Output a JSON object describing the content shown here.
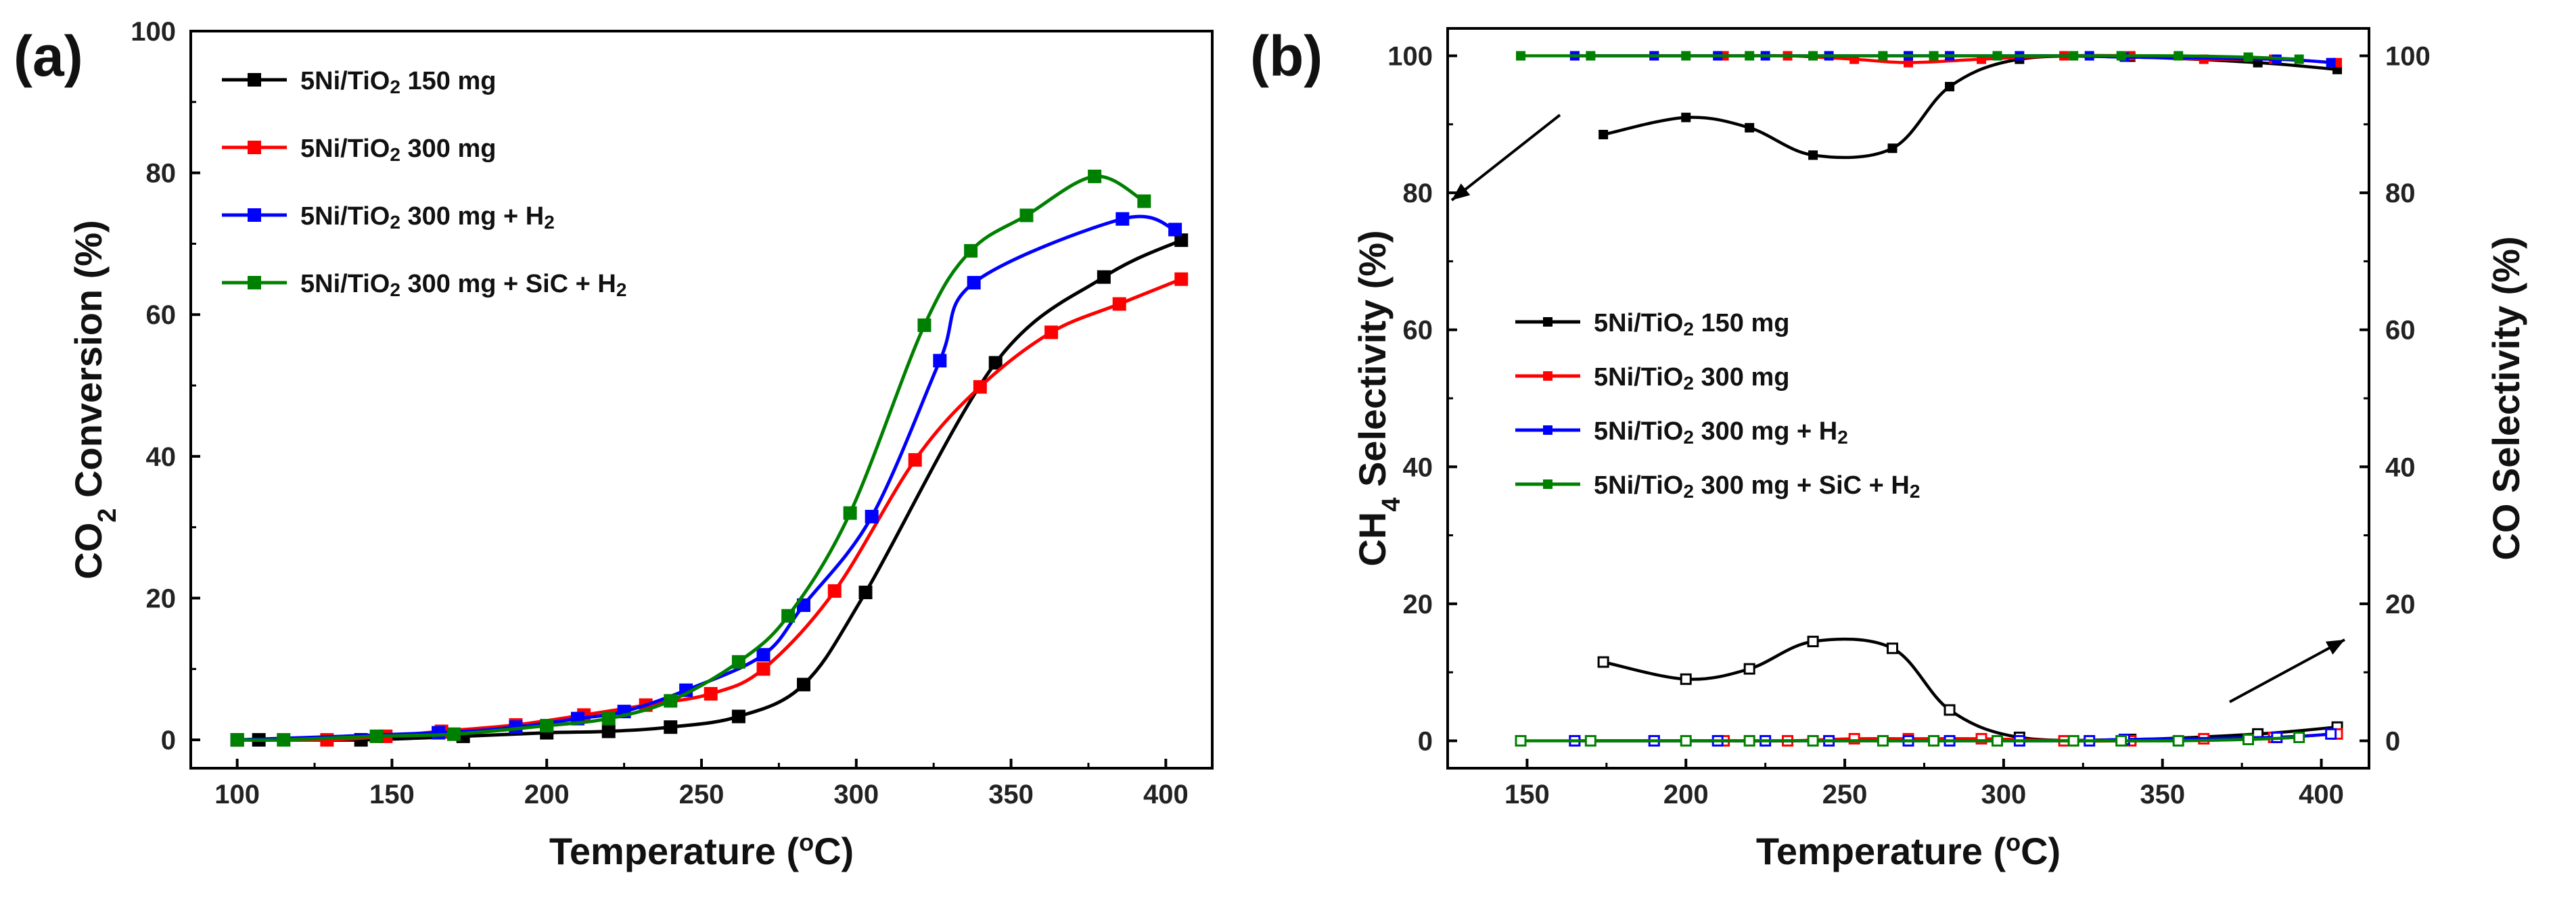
{
  "chart_data": [
    {
      "type": "line",
      "panel_label": "(a)",
      "title": "",
      "xlabel": "Temperature (°C)",
      "ylabel": "CO2 Conversion (%)",
      "xlim": [
        85,
        415
      ],
      "ylim": [
        -4,
        100
      ],
      "xticks": [
        100,
        150,
        200,
        250,
        300,
        350,
        400
      ],
      "yticks": [
        0,
        20,
        40,
        60,
        80,
        100
      ],
      "legend_position": "top-left",
      "series": [
        {
          "name": "5Ni/TiO2 150 mg",
          "label_main": "5Ni/TiO",
          "sub": "2",
          "label_tail": " 150 mg",
          "h2": false,
          "color": "#000000",
          "x": [
            100,
            107,
            140,
            173,
            200,
            220,
            240,
            262,
            283,
            303,
            345,
            380,
            405
          ],
          "y": [
            0,
            0,
            0,
            0.5,
            1,
            1.2,
            1.8,
            3.3,
            7.8,
            20.8,
            53.2,
            65.3,
            70.5
          ]
        },
        {
          "name": "5Ni/TiO2 300 mg",
          "label_main": "5Ni/TiO",
          "sub": "2",
          "label_tail": "  300 mg",
          "h2": false,
          "color": "#ff0000",
          "x": [
            100,
            129,
            148,
            166,
            190,
            212,
            232,
            253,
            270,
            293,
            319,
            340,
            363,
            385,
            405
          ],
          "y": [
            0,
            0,
            0.5,
            1.2,
            2.1,
            3.5,
            4.9,
            6.5,
            10,
            21,
            39.5,
            49.8,
            57.5,
            61.5,
            65
          ]
        },
        {
          "name": "5Ni/TiO2 300 mg + H2",
          "label_main": "5Ni/TiO",
          "sub": "2",
          "label_tail": "  300 mg + H",
          "h2": true,
          "color": "#0000ff",
          "x": [
            100,
            165,
            190,
            210,
            225,
            245,
            270,
            283,
            305,
            327,
            338,
            386,
            403
          ],
          "y": [
            0,
            1,
            1.8,
            3,
            4,
            7,
            12,
            19,
            31.5,
            53.5,
            64.5,
            73.5,
            72
          ]
        },
        {
          "name": "5Ni/TiO2 300 mg + SiC + H2",
          "label_main": "5Ni/TiO",
          "sub": "2",
          "label_tail": "  300 mg + SiC + H",
          "h2": true,
          "color": "#008000",
          "x": [
            100,
            115,
            145,
            170,
            200,
            220,
            240,
            262,
            278,
            298,
            322,
            337,
            355,
            377,
            393
          ],
          "y": [
            0,
            0,
            0.5,
            0.8,
            2,
            3,
            5.5,
            11,
            17.5,
            32,
            58.5,
            69,
            74,
            79.5,
            76
          ]
        }
      ]
    },
    {
      "type": "line",
      "panel_label": "(b)",
      "title": "",
      "xlabel": "Temperature (°C)",
      "ylabel": "CH4 Selectivity (%)",
      "y2label": "CO Selectivity (%)",
      "xlim": [
        125,
        415
      ],
      "ylim": [
        -4,
        104
      ],
      "xticks": [
        150,
        200,
        250,
        300,
        350,
        400
      ],
      "yticks": [
        0,
        20,
        40,
        60,
        80,
        100
      ],
      "legend_position": "center-left",
      "series": [
        {
          "name": "5Ni/TiO2 150 mg",
          "label_main": "5Ni/TiO",
          "sub": "2",
          "label_tail": " 150 mg",
          "h2": false,
          "color": "#000000",
          "ch4": {
            "x": [
              174,
              200,
              220,
              240,
              265,
              283,
              305,
              340,
              380,
              405
            ],
            "y": [
              88.5,
              91,
              89.5,
              85.5,
              86.5,
              95.5,
              99.5,
              99.8,
              99,
              98
            ]
          },
          "co": {
            "x": [
              174,
              200,
              220,
              240,
              265,
              283,
              305,
              340,
              380,
              405
            ],
            "y": [
              11.5,
              9,
              10.5,
              14.5,
              13.5,
              4.5,
              0.5,
              0.2,
              1,
              2
            ]
          }
        },
        {
          "name": "5Ni/TiO2 300 mg",
          "label_main": "5Ni/TiO",
          "sub": "2",
          "label_tail": " 300 mg",
          "h2": false,
          "color": "#ff0000",
          "ch4": {
            "x": [
              165,
              190,
              212,
              232,
              253,
              270,
              293,
              319,
              340,
              363,
              385,
              405
            ],
            "y": [
              100,
              100,
              100,
              100,
              99.5,
              99,
              99.5,
              100,
              100,
              99.5,
              99.5,
              99
            ]
          },
          "co": {
            "x": [
              165,
              190,
              212,
              232,
              253,
              270,
              293,
              319,
              340,
              363,
              385,
              405
            ],
            "y": [
              0,
              0,
              0,
              0,
              0.3,
              0.3,
              0.3,
              0,
              0,
              0.3,
              0.5,
              1
            ]
          }
        },
        {
          "name": "5Ni/TiO2 300 mg + H2",
          "label_main": "5Ni/TiO",
          "sub": "2",
          "label_tail": " 300 mg + H",
          "h2": true,
          "color": "#0000ff",
          "ch4": {
            "x": [
              165,
              190,
              210,
              225,
              245,
              270,
              283,
              305,
              327,
              338,
              386,
              403
            ],
            "y": [
              100,
              100,
              100,
              100,
              100,
              100,
              100,
              100,
              100,
              99.8,
              99.5,
              99
            ]
          },
          "co": {
            "x": [
              165,
              190,
              210,
              225,
              245,
              270,
              283,
              305,
              327,
              338,
              386,
              403
            ],
            "y": [
              0,
              0,
              0,
              0,
              0,
              0,
              0,
              0,
              0,
              0.2,
              0.5,
              1
            ]
          }
        },
        {
          "name": "5Ni/TiO2 300 mg + SiC + H2",
          "label_main": "5Ni/TiO",
          "sub": "2",
          "label_tail": " 300 mg + SiC + H",
          "h2": true,
          "color": "#008000",
          "ch4": {
            "x": [
              148,
              170,
              200,
              220,
              240,
              262,
              278,
              298,
              322,
              337,
              355,
              377,
              393
            ],
            "y": [
              100,
              100,
              100,
              100,
              100,
              100,
              100,
              100,
              100,
              100,
              100,
              99.8,
              99.5
            ]
          },
          "co": {
            "x": [
              148,
              170,
              200,
              220,
              240,
              262,
              278,
              298,
              322,
              337,
              355,
              377,
              393
            ],
            "y": [
              0,
              0,
              0,
              0,
              0,
              0,
              0,
              0,
              0,
              0,
              0,
              0.2,
              0.5
            ]
          }
        }
      ]
    }
  ]
}
